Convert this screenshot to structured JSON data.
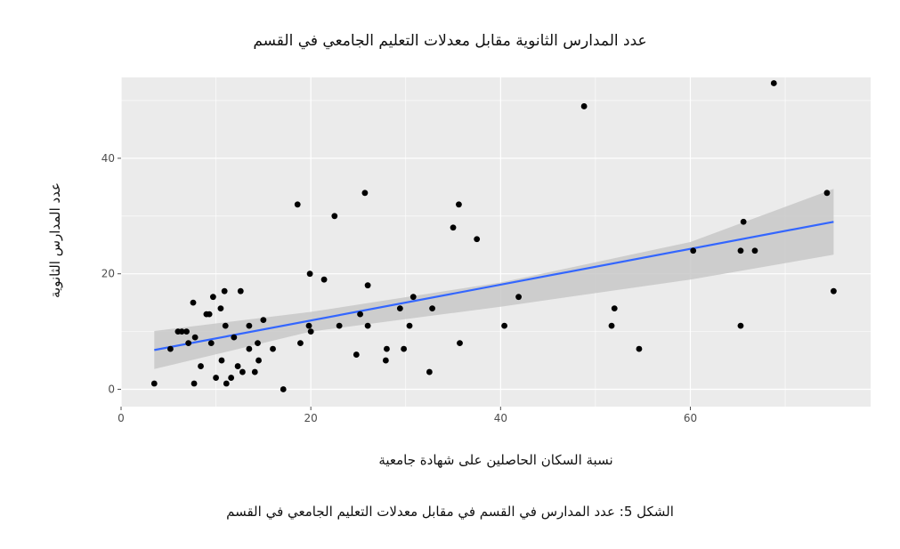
{
  "chart_data": {
    "type": "scatter",
    "title": "عدد المدارس الثانوية مقابل معدلات التعليم الجامعي في القسم",
    "xlabel": "نسبة السكان الحاصلين على شهادة جامعية",
    "ylabel": "عدد المدارس الثانوية",
    "caption": "الشكل 5: عدد المدارس في القسم في مقابل معدلات التعليم الجامعي في القسم",
    "xlim": [
      0,
      79
    ],
    "ylim": [
      -3,
      54
    ],
    "x_ticks": [
      0,
      20,
      40,
      60
    ],
    "y_ticks": [
      0,
      20,
      40
    ],
    "grid": true,
    "background": "#ebebeb",
    "point_color": "#000000",
    "fit_color": "#3366ff",
    "band_color": "#c8c8c8",
    "points": [
      {
        "x": 3.5,
        "y": 1
      },
      {
        "x": 5.2,
        "y": 7
      },
      {
        "x": 6.0,
        "y": 10
      },
      {
        "x": 6.4,
        "y": 10
      },
      {
        "x": 6.9,
        "y": 10
      },
      {
        "x": 7.1,
        "y": 8
      },
      {
        "x": 7.6,
        "y": 15
      },
      {
        "x": 7.7,
        "y": 1
      },
      {
        "x": 7.8,
        "y": 9
      },
      {
        "x": 8.4,
        "y": 4
      },
      {
        "x": 9.0,
        "y": 13
      },
      {
        "x": 9.3,
        "y": 13
      },
      {
        "x": 9.5,
        "y": 8
      },
      {
        "x": 9.7,
        "y": 16
      },
      {
        "x": 10.0,
        "y": 2
      },
      {
        "x": 10.5,
        "y": 14
      },
      {
        "x": 10.6,
        "y": 5
      },
      {
        "x": 10.9,
        "y": 17
      },
      {
        "x": 11.0,
        "y": 11
      },
      {
        "x": 11.1,
        "y": 1
      },
      {
        "x": 11.6,
        "y": 2
      },
      {
        "x": 11.9,
        "y": 9
      },
      {
        "x": 12.3,
        "y": 4
      },
      {
        "x": 12.6,
        "y": 17
      },
      {
        "x": 12.8,
        "y": 3
      },
      {
        "x": 13.5,
        "y": 11
      },
      {
        "x": 13.5,
        "y": 7
      },
      {
        "x": 14.1,
        "y": 3
      },
      {
        "x": 14.4,
        "y": 8
      },
      {
        "x": 14.5,
        "y": 5
      },
      {
        "x": 15.0,
        "y": 12
      },
      {
        "x": 16.0,
        "y": 7
      },
      {
        "x": 17.1,
        "y": 0
      },
      {
        "x": 18.6,
        "y": 32
      },
      {
        "x": 18.9,
        "y": 8
      },
      {
        "x": 19.8,
        "y": 11
      },
      {
        "x": 19.9,
        "y": 20
      },
      {
        "x": 20.0,
        "y": 10
      },
      {
        "x": 21.4,
        "y": 19
      },
      {
        "x": 22.5,
        "y": 30
      },
      {
        "x": 23.0,
        "y": 11
      },
      {
        "x": 24.8,
        "y": 6
      },
      {
        "x": 25.2,
        "y": 13
      },
      {
        "x": 25.7,
        "y": 34
      },
      {
        "x": 26.0,
        "y": 18
      },
      {
        "x": 26.0,
        "y": 11
      },
      {
        "x": 27.9,
        "y": 5
      },
      {
        "x": 28.0,
        "y": 7
      },
      {
        "x": 29.4,
        "y": 14
      },
      {
        "x": 29.8,
        "y": 7
      },
      {
        "x": 30.4,
        "y": 11
      },
      {
        "x": 30.8,
        "y": 16
      },
      {
        "x": 32.5,
        "y": 3
      },
      {
        "x": 32.8,
        "y": 14
      },
      {
        "x": 35.0,
        "y": 28
      },
      {
        "x": 35.6,
        "y": 32
      },
      {
        "x": 35.7,
        "y": 8
      },
      {
        "x": 37.5,
        "y": 26
      },
      {
        "x": 40.4,
        "y": 11
      },
      {
        "x": 41.9,
        "y": 16
      },
      {
        "x": 48.8,
        "y": 49
      },
      {
        "x": 51.7,
        "y": 11
      },
      {
        "x": 52.0,
        "y": 14
      },
      {
        "x": 54.6,
        "y": 7
      },
      {
        "x": 60.3,
        "y": 24
      },
      {
        "x": 65.3,
        "y": 24
      },
      {
        "x": 65.3,
        "y": 11
      },
      {
        "x": 65.6,
        "y": 29
      },
      {
        "x": 66.8,
        "y": 24
      },
      {
        "x": 68.8,
        "y": 53
      },
      {
        "x": 74.4,
        "y": 34
      },
      {
        "x": 75.1,
        "y": 17
      }
    ],
    "fit_line": [
      {
        "x": 3.5,
        "y": 6.8
      },
      {
        "x": 75.1,
        "y": 29.0
      }
    ],
    "confidence_band": {
      "x": [
        3.5,
        20,
        40,
        60,
        75.1
      ],
      "lower": [
        3.5,
        10.0,
        14.3,
        19.0,
        23.3
      ],
      "upper": [
        10.1,
        13.4,
        18.5,
        25.5,
        34.7
      ]
    }
  }
}
